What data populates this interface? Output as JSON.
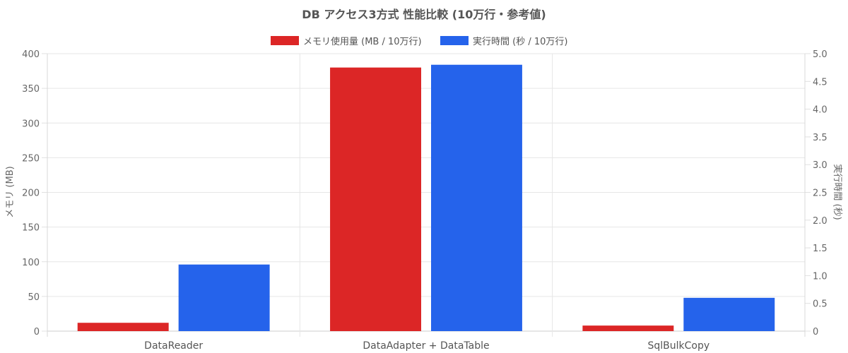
{
  "chart_data": {
    "type": "bar",
    "title": "DB アクセス3方式 性能比較 (10万行・参考値)",
    "categories": [
      "DataReader",
      "DataAdapter + DataTable",
      "SqlBulkCopy"
    ],
    "series": [
      {
        "name": "メモリ使用量 (MB / 10万行)",
        "axis": "left",
        "color": "#dc2626",
        "values": [
          12,
          380,
          8
        ]
      },
      {
        "name": "実行時間 (秒 / 10万行)",
        "axis": "right",
        "color": "#2563eb",
        "values": [
          1.2,
          4.8,
          0.6
        ]
      }
    ],
    "y_left": {
      "label": "メモリ (MB)",
      "ylim": [
        0,
        400
      ],
      "ticks": [
        "0",
        "50",
        "100",
        "150",
        "200",
        "250",
        "300",
        "350",
        "400"
      ]
    },
    "y_right": {
      "label": "実行時間 (秒)",
      "ylim": [
        0,
        5
      ],
      "ticks": [
        "0",
        "0.5",
        "1.0",
        "1.5",
        "2.0",
        "2.5",
        "3.0",
        "3.5",
        "4.0",
        "4.5",
        "5.0"
      ]
    },
    "grid": true,
    "legend_position": "top-center"
  }
}
